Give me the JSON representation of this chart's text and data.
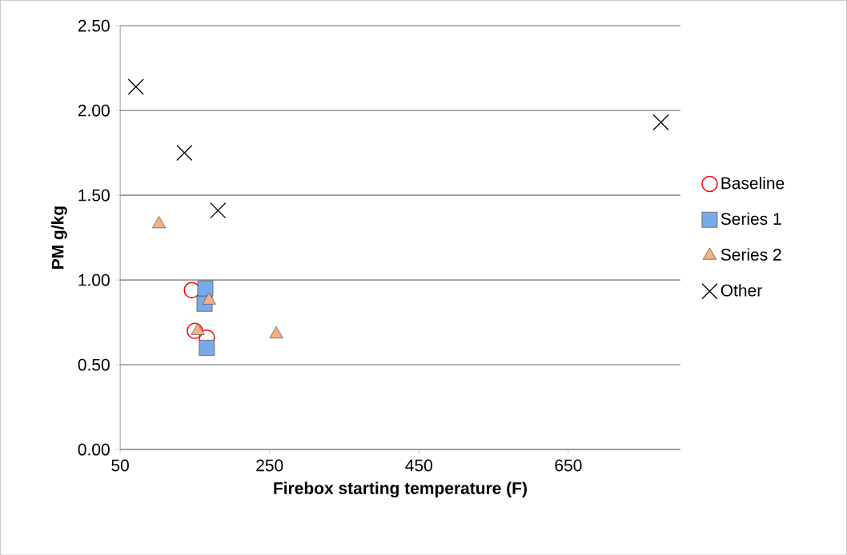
{
  "chart_data": {
    "type": "scatter",
    "xlabel": "Firebox starting temperature (F)",
    "ylabel": "PM g/kg",
    "xlim": [
      50,
      800
    ],
    "xticks": [
      50,
      250,
      450,
      650
    ],
    "ylim": [
      0,
      2.5
    ],
    "yticks": [
      {
        "value": 0,
        "label": "0.00"
      },
      {
        "value": 0.5,
        "label": "0.50"
      },
      {
        "value": 1,
        "label": "1.00"
      },
      {
        "value": 1.5,
        "label": "1.50"
      },
      {
        "value": 2,
        "label": "2.00"
      },
      {
        "value": 2.5,
        "label": "2.50"
      }
    ],
    "grid": "y",
    "legend": "right",
    "series": [
      {
        "name": "Baseline",
        "color": "#ff0000",
        "marker": "circle",
        "x": [
          146,
          150,
          166
        ],
        "values": [
          0.94,
          0.7,
          0.66
        ]
      },
      {
        "name": "Series 1",
        "color": "#7aa9e8",
        "marker": "square",
        "x": [
          164,
          163,
          166
        ],
        "values": [
          0.95,
          0.86,
          0.6
        ]
      },
      {
        "name": "Series 2",
        "color": "#f4b183",
        "marker": "triangle",
        "x": [
          102,
          154,
          169,
          259
        ],
        "values": [
          1.33,
          0.7,
          0.88,
          0.68
        ]
      },
      {
        "name": "Other",
        "color": "#000000",
        "marker": "cross",
        "x": [
          71,
          136,
          181,
          774
        ],
        "values": [
          2.14,
          1.75,
          1.41,
          1.93
        ]
      }
    ]
  }
}
